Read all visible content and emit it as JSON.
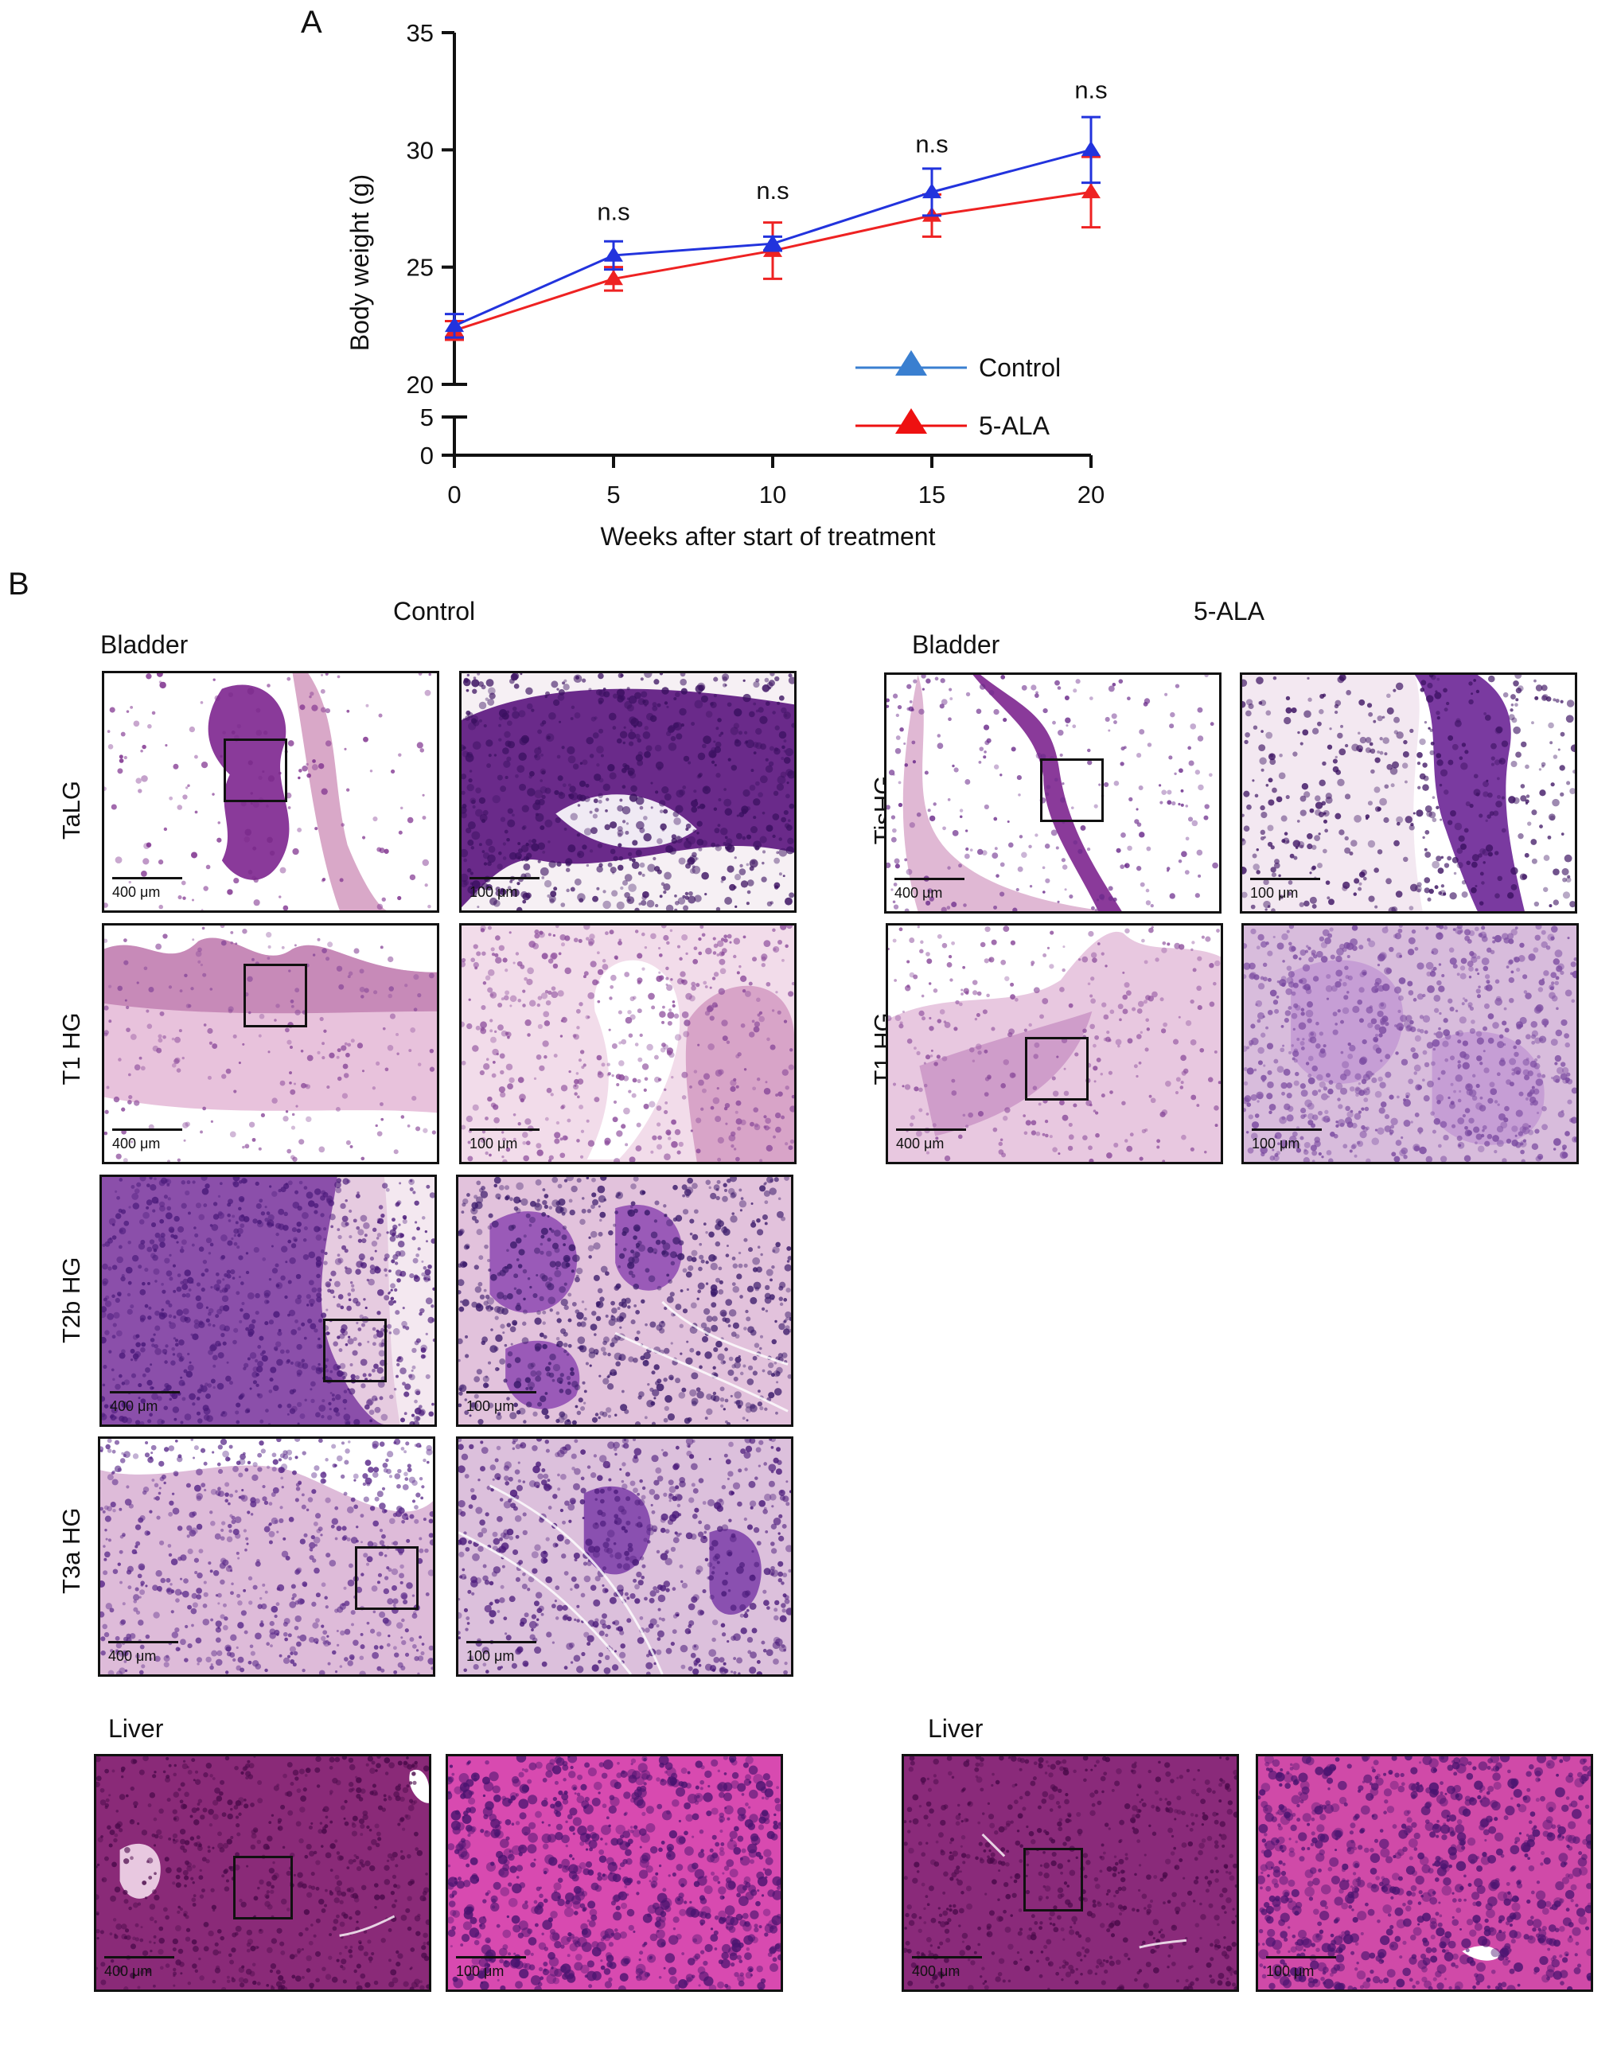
{
  "panels": {
    "a_letter": "A",
    "b_letter": "B"
  },
  "chart_data": {
    "type": "line",
    "xlabel": "Weeks after start of treatment",
    "ylabel": "Body weight (g)",
    "x": [
      0,
      5,
      10,
      15,
      20
    ],
    "x_ticks": [
      "0",
      "5",
      "10",
      "15",
      "20"
    ],
    "y_ticks_upper": [
      "20",
      "25",
      "30",
      "35"
    ],
    "y_ticks_lower": [
      "0",
      "5"
    ],
    "ylim_upper": [
      20,
      35
    ],
    "ylim_lower": [
      0,
      5
    ],
    "axis_break": true,
    "grid": false,
    "legend_position": "bottom-right",
    "annotations": [
      "n.s",
      "n.s",
      "n.s",
      "n.s"
    ],
    "annotation_x": [
      5,
      10,
      15,
      20
    ],
    "annotation_y": [
      27.0,
      27.9,
      29.9,
      32.2
    ],
    "series": [
      {
        "name": "Control",
        "color": "#2233dd",
        "legend_color": "#3a7fd0",
        "values": [
          22.5,
          25.5,
          26.0,
          28.2,
          30.0
        ],
        "err": [
          0.5,
          0.6,
          0.3,
          1.0,
          1.4
        ]
      },
      {
        "name": "5-ALA",
        "color": "#ee2222",
        "legend_color": "#ee1111",
        "values": [
          22.3,
          24.5,
          25.7,
          27.2,
          28.2
        ],
        "err": [
          0.4,
          0.5,
          1.2,
          0.9,
          1.5
        ]
      }
    ]
  },
  "figure_b": {
    "control_title": "Control",
    "ala_title": "5-ALA",
    "bladder_label": "Bladder",
    "liver_label": "Liver",
    "control_rows": [
      "TaLG",
      "T1 HG",
      "T2b HG",
      "T3a HG"
    ],
    "ala_rows": [
      "TisHG",
      "T1 HG"
    ],
    "scale_low": "400 μm",
    "scale_high": "100 μm"
  }
}
